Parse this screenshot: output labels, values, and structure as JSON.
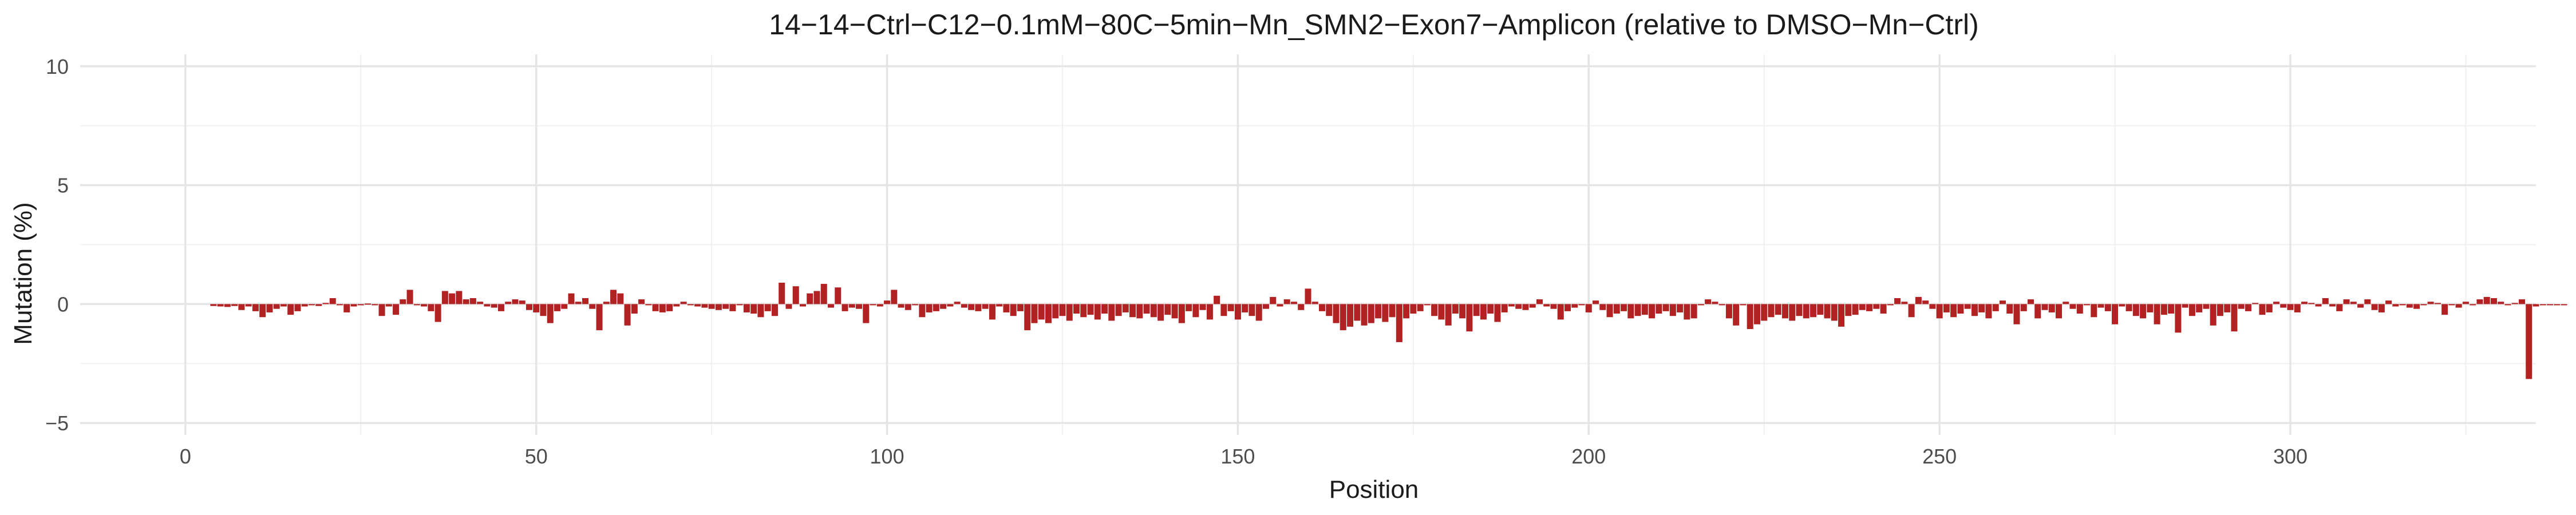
{
  "chart_data": {
    "type": "bar",
    "title": "14−14−Ctrl−C12−0.1mM−80C−5min−Mn_SMN2−Exon7−Amplicon (relative to DMSO−Mn−Ctrl)",
    "xlabel": "Position",
    "ylabel": "Mutation (%)",
    "xlim": [
      -15,
      335
    ],
    "ylim": [
      -5.5,
      10.5
    ],
    "x_ticks": [
      0,
      50,
      100,
      150,
      200,
      250,
      300
    ],
    "y_ticks": [
      -5,
      0,
      5,
      10
    ],
    "x_tick_labels": [
      "0",
      "50",
      "100",
      "150",
      "200",
      "250",
      "300"
    ],
    "y_tick_labels": [
      "−5",
      "0",
      "5",
      "10"
    ],
    "grid": true,
    "legend": "none",
    "bar_color": "#b22222",
    "x_start": 4,
    "values": [
      -0.08,
      -0.1,
      -0.12,
      -0.08,
      -0.25,
      -0.1,
      -0.3,
      -0.55,
      -0.35,
      -0.2,
      -0.1,
      -0.45,
      -0.3,
      -0.1,
      -0.05,
      -0.08,
      0.05,
      0.25,
      -0.05,
      -0.35,
      -0.1,
      -0.05,
      -0.02,
      -0.05,
      -0.5,
      -0.1,
      -0.45,
      0.2,
      0.6,
      -0.05,
      -0.1,
      -0.3,
      -0.75,
      0.55,
      0.45,
      0.55,
      0.2,
      0.25,
      0.1,
      -0.1,
      -0.15,
      -0.3,
      0.1,
      0.2,
      0.15,
      -0.25,
      -0.35,
      -0.5,
      -0.8,
      -0.3,
      -0.2,
      0.45,
      0.1,
      0.25,
      -0.2,
      -1.1,
      0.1,
      0.6,
      0.45,
      -0.9,
      -0.4,
      0.2,
      -0.05,
      -0.3,
      -0.35,
      -0.3,
      -0.1,
      0.1,
      -0.05,
      -0.1,
      -0.15,
      -0.2,
      -0.25,
      -0.2,
      -0.3,
      -0.05,
      -0.35,
      -0.4,
      -0.55,
      -0.3,
      -0.5,
      0.9,
      -0.2,
      0.75,
      -0.1,
      0.45,
      0.55,
      0.85,
      -0.15,
      0.7,
      -0.3,
      -0.15,
      -0.2,
      -0.8,
      -0.05,
      -0.1,
      0.15,
      0.6,
      -0.15,
      -0.25,
      -0.05,
      -0.55,
      -0.35,
      -0.3,
      -0.2,
      -0.1,
      0.1,
      -0.15,
      -0.25,
      -0.3,
      -0.2,
      -0.65,
      -0.1,
      -0.35,
      -0.5,
      -0.3,
      -1.1,
      -0.8,
      -0.65,
      -0.8,
      -0.6,
      -0.5,
      -0.7,
      -0.4,
      -0.55,
      -0.45,
      -0.65,
      -0.4,
      -0.7,
      -0.5,
      -0.35,
      -0.55,
      -0.6,
      -0.4,
      -0.55,
      -0.7,
      -0.45,
      -0.6,
      -0.8,
      -0.3,
      -0.55,
      -0.25,
      -0.65,
      0.35,
      -0.5,
      -0.3,
      -0.65,
      -0.35,
      -0.5,
      -0.7,
      -0.2,
      0.3,
      -0.1,
      0.2,
      0.1,
      -0.25,
      0.65,
      0.1,
      -0.3,
      -0.5,
      -0.8,
      -1.1,
      -0.95,
      -0.7,
      -0.9,
      -0.8,
      -0.6,
      -0.75,
      -0.55,
      -1.6,
      -0.6,
      -0.4,
      -0.3,
      -0.05,
      -0.5,
      -0.65,
      -0.9,
      -0.4,
      -0.6,
      -1.15,
      -0.5,
      -0.65,
      -0.4,
      -0.75,
      -0.35,
      -0.1,
      -0.2,
      -0.25,
      -0.15,
      0.2,
      -0.1,
      -0.2,
      -0.65,
      -0.3,
      -0.15,
      -0.05,
      -0.35,
      0.15,
      -0.25,
      -0.55,
      -0.4,
      -0.3,
      -0.6,
      -0.5,
      -0.45,
      -0.6,
      -0.4,
      -0.3,
      -0.5,
      -0.35,
      -0.65,
      -0.6,
      -0.05,
      0.2,
      0.1,
      -0.05,
      -0.6,
      -0.9,
      -0.05,
      -1.05,
      -0.85,
      -0.7,
      -0.55,
      -0.45,
      -0.6,
      -0.7,
      -0.5,
      -0.6,
      -0.55,
      -0.45,
      -0.6,
      -0.7,
      -0.95,
      -0.5,
      -0.45,
      -0.25,
      -0.3,
      -0.2,
      -0.4,
      -0.05,
      0.25,
      0.1,
      -0.55,
      0.3,
      0.15,
      -0.2,
      -0.6,
      -0.35,
      -0.55,
      -0.4,
      -0.2,
      -0.5,
      -0.35,
      -0.6,
      -0.3,
      0.15,
      -0.4,
      -0.85,
      -0.3,
      0.2,
      -0.6,
      -0.25,
      -0.35,
      -0.6,
      0.1,
      -0.2,
      -0.4,
      -0.05,
      -0.55,
      -0.15,
      -0.3,
      -0.85,
      -0.1,
      -0.3,
      -0.5,
      -0.6,
      -0.35,
      -0.85,
      -0.45,
      -0.4,
      -1.2,
      -0.15,
      -0.5,
      -0.35,
      -0.2,
      -0.9,
      -0.5,
      -0.35,
      -1.15,
      -0.2,
      -0.3,
      0.05,
      -0.45,
      -0.35,
      0.1,
      -0.15,
      -0.25,
      -0.35,
      0.1,
      0.05,
      -0.1,
      0.25,
      -0.1,
      -0.3,
      0.2,
      0.1,
      -0.15,
      0.2,
      -0.25,
      -0.35,
      0.15,
      -0.1,
      -0.05,
      -0.15,
      -0.2,
      -0.05,
      0.1,
      0.05,
      -0.45,
      -0.05,
      -0.15,
      0.1,
      -0.05,
      0.2,
      0.3,
      0.25,
      0.1,
      -0.05,
      0.05,
      0.2,
      -3.15,
      -0.1,
      -0.05,
      -0.05,
      -0.05,
      -0.05
    ]
  }
}
